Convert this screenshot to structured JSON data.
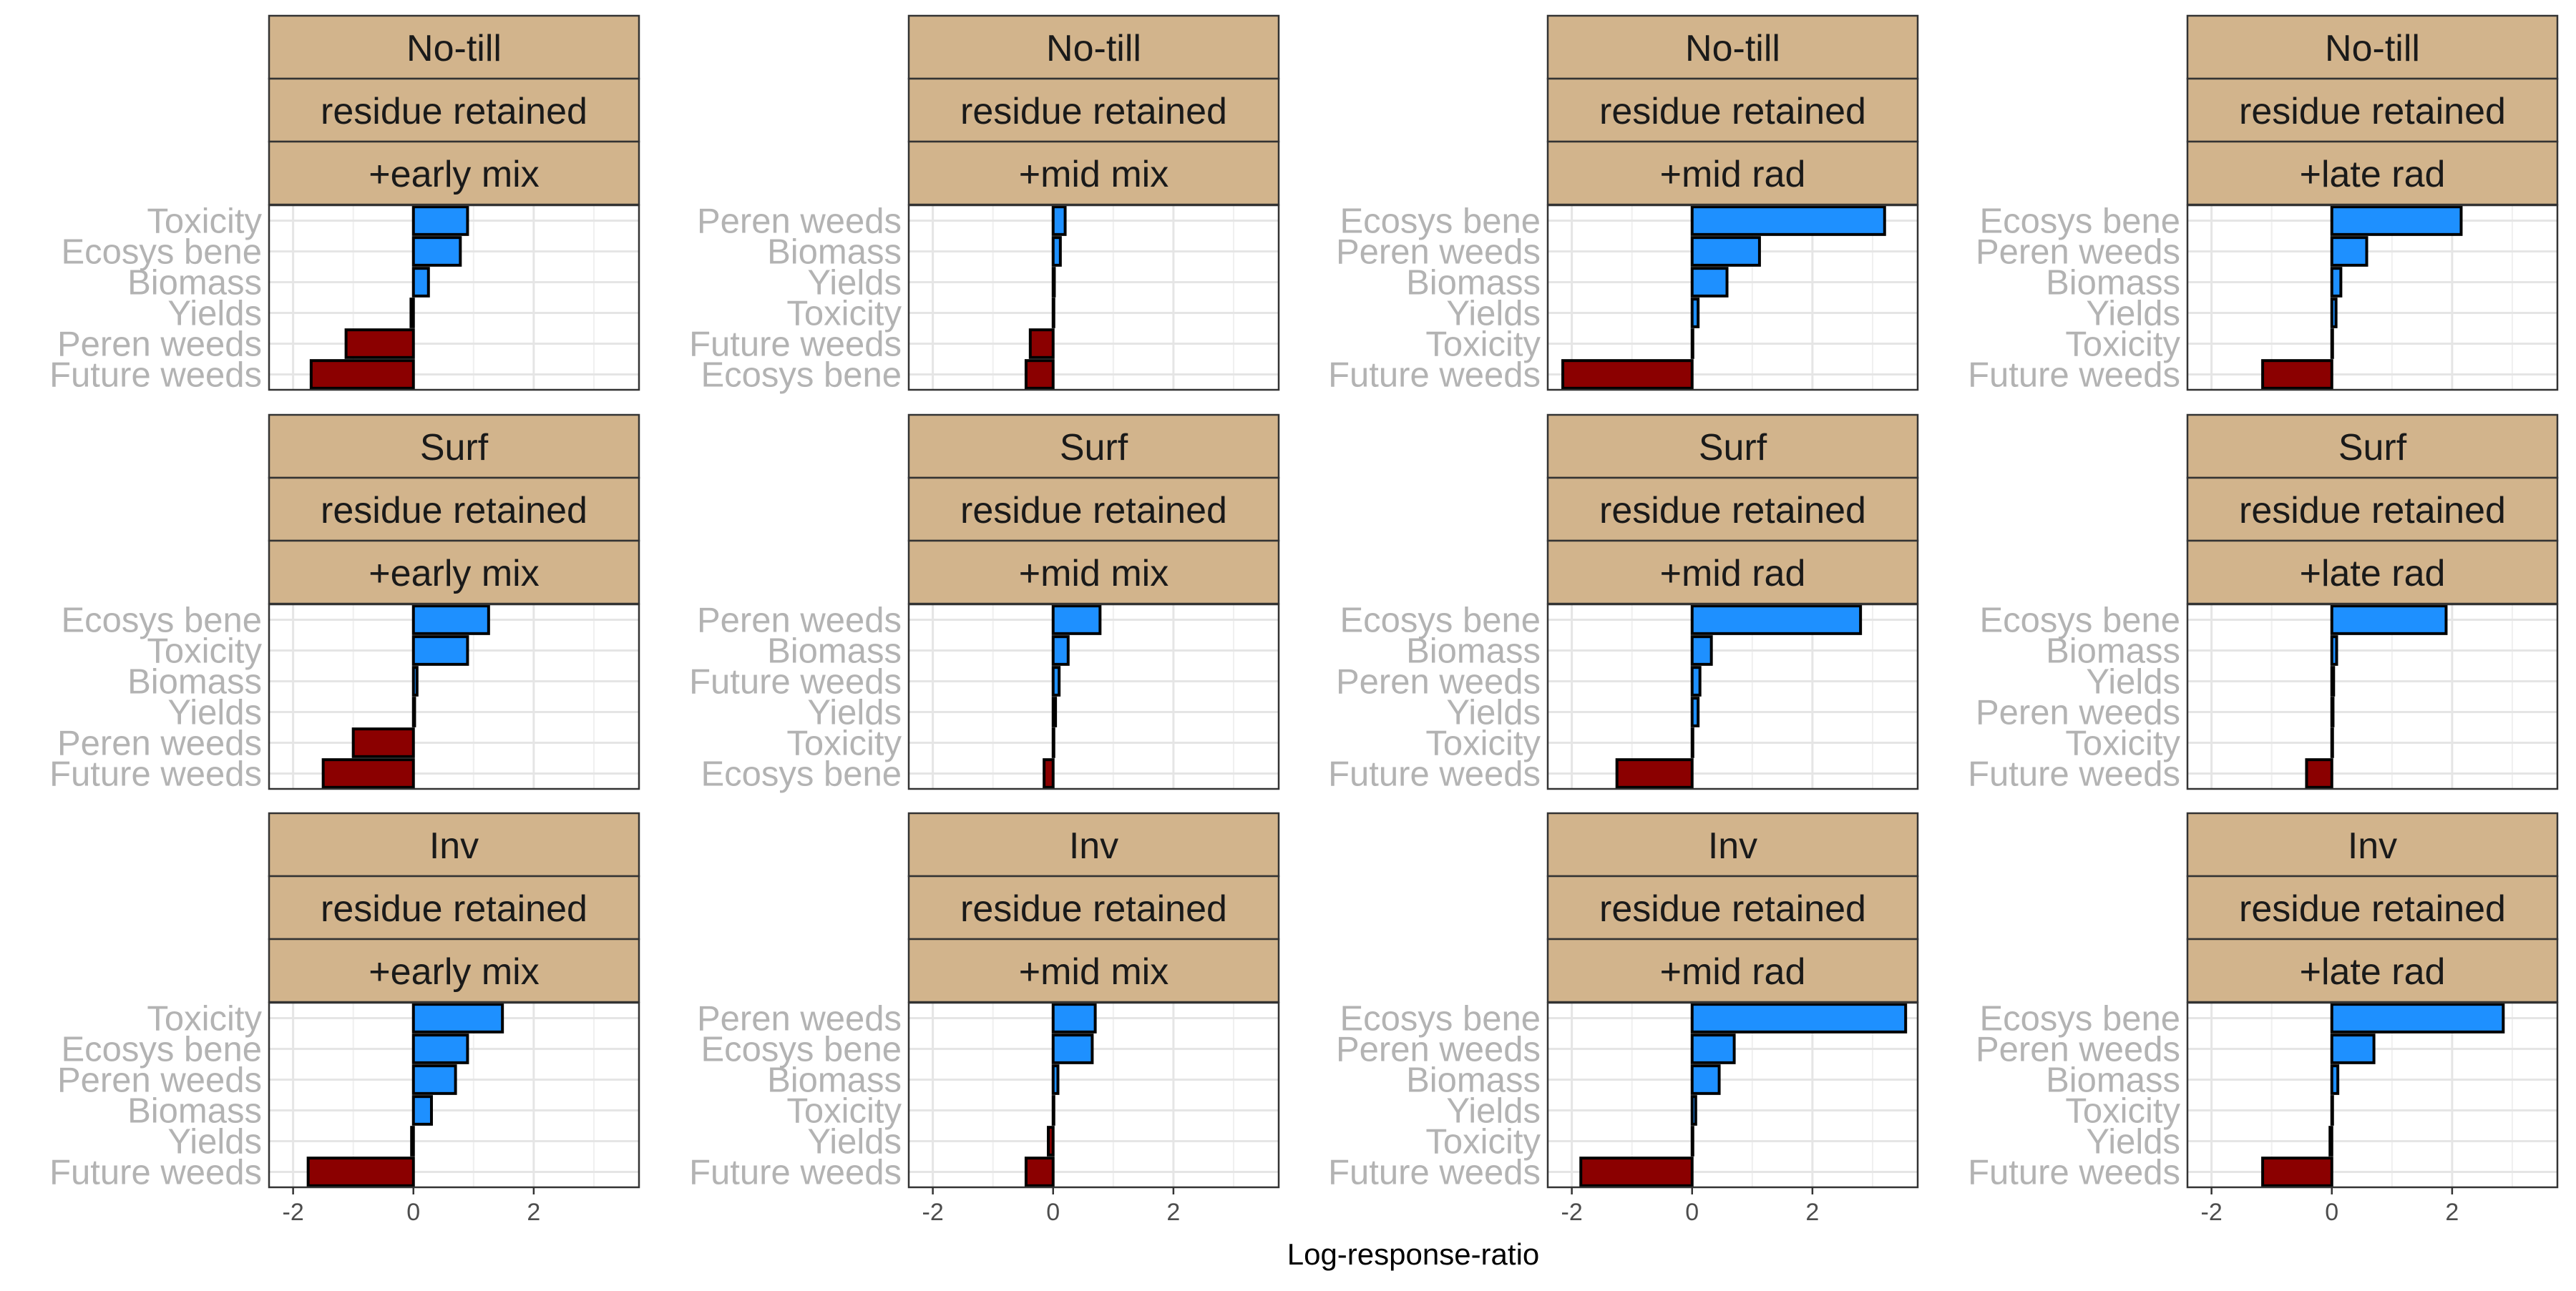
{
  "chart_data": {
    "type": "bar",
    "orientation": "horizontal",
    "xlabel": "Log-response-ratio",
    "ylabel": "",
    "xlim": [
      -2.4,
      3.75
    ],
    "x_ticks": [
      -2,
      0,
      2
    ],
    "grid": true,
    "colors": {
      "positive": "#1E90FF",
      "negative": "#8B0000",
      "strip": "#D2B48C",
      "tick_label": "#B3B3B3"
    },
    "panels": [
      {
        "strips": [
          "No-till",
          "residue retained",
          "+early mix"
        ],
        "categories": [
          "Toxicity",
          "Ecosys bene",
          "Biomass",
          "Yields",
          "Peren weeds",
          "Future weeds"
        ],
        "values": [
          0.9,
          0.78,
          0.25,
          -0.04,
          -1.12,
          -1.7
        ]
      },
      {
        "strips": [
          "No-till",
          "residue retained",
          "+mid mix"
        ],
        "categories": [
          "Peren weeds",
          "Biomass",
          "Yields",
          "Toxicity",
          "Future weeds",
          "Ecosys bene"
        ],
        "values": [
          0.2,
          0.12,
          0.02,
          0.0,
          -0.38,
          -0.45
        ]
      },
      {
        "strips": [
          "No-till",
          "residue retained",
          "+mid rad"
        ],
        "categories": [
          "Ecosys bene",
          "Peren weeds",
          "Biomass",
          "Yields",
          "Toxicity",
          "Future weeds"
        ],
        "values": [
          3.2,
          1.12,
          0.58,
          0.1,
          0.0,
          -2.15
        ]
      },
      {
        "strips": [
          "No-till",
          "residue retained",
          "+late rad"
        ],
        "categories": [
          "Ecosys bene",
          "Peren weeds",
          "Biomass",
          "Yields",
          "Toxicity",
          "Future weeds"
        ],
        "values": [
          2.15,
          0.58,
          0.15,
          0.07,
          0.0,
          -1.15
        ]
      },
      {
        "strips": [
          "Surf",
          "residue retained",
          "+early mix"
        ],
        "categories": [
          "Ecosys bene",
          "Toxicity",
          "Biomass",
          "Yields",
          "Peren weeds",
          "Future weeds"
        ],
        "values": [
          1.25,
          0.9,
          0.06,
          0.02,
          -1.0,
          -1.5
        ]
      },
      {
        "strips": [
          "Surf",
          "residue retained",
          "+mid mix"
        ],
        "categories": [
          "Peren weeds",
          "Biomass",
          "Future weeds",
          "Yields",
          "Toxicity",
          "Ecosys bene"
        ],
        "values": [
          0.78,
          0.25,
          0.1,
          0.04,
          0.0,
          -0.15
        ]
      },
      {
        "strips": [
          "Surf",
          "residue retained",
          "+mid rad"
        ],
        "categories": [
          "Ecosys bene",
          "Biomass",
          "Peren weeds",
          "Yields",
          "Toxicity",
          "Future weeds"
        ],
        "values": [
          2.8,
          0.32,
          0.13,
          0.1,
          0.0,
          -1.25
        ]
      },
      {
        "strips": [
          "Surf",
          "residue retained",
          "+late rad"
        ],
        "categories": [
          "Ecosys bene",
          "Biomass",
          "Yields",
          "Peren weeds",
          "Toxicity",
          "Future weeds"
        ],
        "values": [
          1.9,
          0.08,
          0.03,
          0.02,
          0.0,
          -0.42
        ]
      },
      {
        "strips": [
          "Inv",
          "residue retained",
          "+early mix"
        ],
        "categories": [
          "Toxicity",
          "Ecosys bene",
          "Peren weeds",
          "Biomass",
          "Yields",
          "Future weeds"
        ],
        "values": [
          1.48,
          0.9,
          0.7,
          0.3,
          -0.03,
          -1.75
        ]
      },
      {
        "strips": [
          "Inv",
          "residue retained",
          "+mid mix"
        ],
        "categories": [
          "Peren weeds",
          "Ecosys bene",
          "Biomass",
          "Toxicity",
          "Yields",
          "Future weeds"
        ],
        "values": [
          0.7,
          0.65,
          0.08,
          0.0,
          -0.08,
          -0.45
        ]
      },
      {
        "strips": [
          "Inv",
          "residue retained",
          "+mid rad"
        ],
        "categories": [
          "Ecosys bene",
          "Peren weeds",
          "Biomass",
          "Yields",
          "Toxicity",
          "Future weeds"
        ],
        "values": [
          3.55,
          0.7,
          0.45,
          0.06,
          0.0,
          -1.85
        ]
      },
      {
        "strips": [
          "Inv",
          "residue retained",
          "+late rad"
        ],
        "categories": [
          "Ecosys bene",
          "Peren weeds",
          "Biomass",
          "Toxicity",
          "Yields",
          "Future weeds"
        ],
        "values": [
          2.85,
          0.7,
          0.1,
          0.0,
          -0.03,
          -1.15
        ]
      }
    ]
  }
}
